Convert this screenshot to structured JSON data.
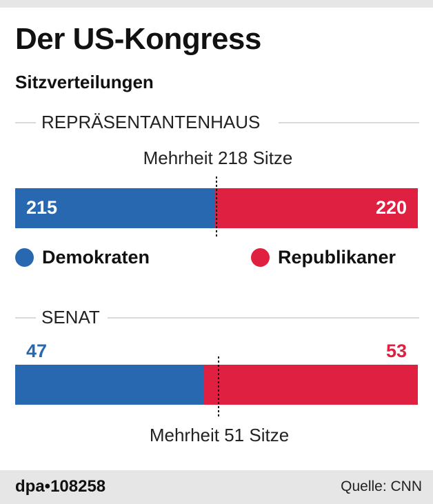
{
  "header": {
    "title": "Der US-Kongress",
    "subtitle": "Sitzverteilungen"
  },
  "chart_data": [
    {
      "type": "bar",
      "stacked": true,
      "orientation": "horizontal",
      "section_label": "REPRÄSENTANTENHAUS",
      "total_seats": 435,
      "majority_value": 218,
      "majority_label": "Mehrheit 218 Sitze",
      "series": [
        {
          "name": "Demokraten",
          "value": 215,
          "color": "#2868b0"
        },
        {
          "name": "Republikaner",
          "value": 220,
          "color": "#e02040"
        }
      ]
    },
    {
      "type": "bar",
      "stacked": true,
      "orientation": "horizontal",
      "section_label": "SENAT",
      "total_seats": 100,
      "majority_value": 51,
      "majority_label": "Mehrheit 51 Sitze",
      "series": [
        {
          "name": "Demokraten",
          "value": 47,
          "color": "#2868b0"
        },
        {
          "name": "Republikaner",
          "value": 53,
          "color": "#e02040"
        }
      ]
    }
  ],
  "legend": [
    {
      "label": "Demokraten",
      "color": "#2868b0"
    },
    {
      "label": "Republikaner",
      "color": "#e02040"
    }
  ],
  "footer": {
    "id": "dpa•108258",
    "source": "Quelle: CNN"
  }
}
